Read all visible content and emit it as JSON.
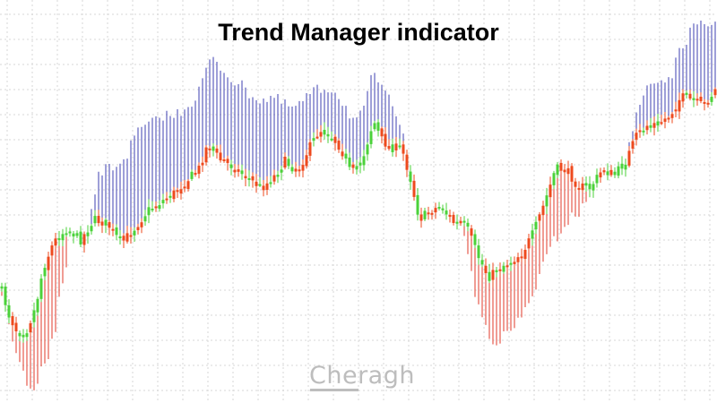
{
  "chart_data": {
    "type": "candlestick",
    "title": "Trend Manager indicator",
    "xlabel": "",
    "ylabel": "",
    "ylim": [
      0,
      450
    ],
    "grid": true,
    "legend": "none",
    "colors": {
      "bull_candle": "#4bd23a",
      "bear_candle": "#ee4a1e",
      "indicator_up": "#3d3fb0",
      "indicator_down": "#e23a2a",
      "grid": "#d7d7d7"
    },
    "series": [
      {
        "name": "price_close",
        "keypoints": [
          [
            0,
            318
          ],
          [
            10,
            352
          ],
          [
            20,
            372
          ],
          [
            30,
            368
          ],
          [
            40,
            342
          ],
          [
            48,
            300
          ],
          [
            60,
            270
          ],
          [
            75,
            255
          ],
          [
            90,
            268
          ],
          [
            105,
            245
          ],
          [
            120,
            250
          ],
          [
            135,
            272
          ],
          [
            150,
            255
          ],
          [
            165,
            235
          ],
          [
            180,
            225
          ],
          [
            195,
            215
          ],
          [
            210,
            200
          ],
          [
            222,
            188
          ],
          [
            232,
            160
          ],
          [
            245,
            178
          ],
          [
            258,
            185
          ],
          [
            268,
            192
          ],
          [
            278,
            200
          ],
          [
            292,
            210
          ],
          [
            305,
            198
          ],
          [
            318,
            180
          ],
          [
            332,
            192
          ],
          [
            345,
            165
          ],
          [
            357,
            145
          ],
          [
            368,
            150
          ],
          [
            380,
            165
          ],
          [
            392,
            195
          ],
          [
            405,
            175
          ],
          [
            417,
            135
          ],
          [
            425,
            155
          ],
          [
            435,
            165
          ],
          [
            448,
            165
          ],
          [
            458,
            200
          ],
          [
            468,
            245
          ],
          [
            480,
            235
          ],
          [
            492,
            230
          ],
          [
            505,
            248
          ],
          [
            520,
            252
          ],
          [
            533,
            285
          ],
          [
            545,
            310
          ],
          [
            558,
            298
          ],
          [
            570,
            292
          ],
          [
            583,
            282
          ],
          [
            595,
            260
          ],
          [
            608,
            225
          ],
          [
            620,
            188
          ],
          [
            632,
            190
          ],
          [
            645,
            208
          ],
          [
            658,
            210
          ],
          [
            672,
            190
          ],
          [
            686,
            195
          ],
          [
            698,
            180
          ],
          [
            710,
            152
          ],
          [
            722,
            140
          ],
          [
            735,
            138
          ],
          [
            748,
            128
          ],
          [
            760,
            108
          ],
          [
            772,
            112
          ],
          [
            785,
            118
          ],
          [
            800,
            98
          ]
        ]
      },
      {
        "name": "indicator_up",
        "keypoints": [
          [
            100,
            240
          ],
          [
            112,
            190
          ],
          [
            125,
            188
          ],
          [
            140,
            175
          ],
          [
            155,
            145
          ],
          [
            170,
            138
          ],
          [
            182,
            128
          ],
          [
            195,
            130
          ],
          [
            208,
            118
          ],
          [
            220,
            108
          ],
          [
            232,
            70
          ],
          [
            240,
            68
          ],
          [
            255,
            85
          ],
          [
            268,
            95
          ],
          [
            280,
            105
          ],
          [
            292,
            112
          ],
          [
            305,
            108
          ],
          [
            318,
            118
          ],
          [
            332,
            120
          ],
          [
            345,
            105
          ],
          [
            357,
            100
          ],
          [
            372,
            98
          ],
          [
            385,
            118
          ],
          [
            395,
            135
          ],
          [
            405,
            128
          ],
          [
            417,
            78
          ],
          [
            430,
            108
          ],
          [
            440,
            118
          ],
          [
            452,
            150
          ],
          [
            458,
            185
          ]
        ]
      },
      {
        "name": "indicator_up_right",
        "keypoints": [
          [
            702,
            158
          ],
          [
            712,
            125
          ],
          [
            722,
            95
          ],
          [
            735,
            90
          ],
          [
            748,
            88
          ],
          [
            758,
            60
          ],
          [
            770,
            35
          ],
          [
            785,
            28
          ],
          [
            800,
            25
          ]
        ]
      },
      {
        "name": "indicator_down_left",
        "keypoints": [
          [
            0,
            318
          ],
          [
            8,
            348
          ],
          [
            18,
            395
          ],
          [
            26,
            418
          ],
          [
            36,
            445
          ],
          [
            44,
            420
          ],
          [
            52,
            400
          ],
          [
            60,
            380
          ],
          [
            68,
            320
          ],
          [
            76,
            300
          ]
        ]
      },
      {
        "name": "indicator_down_mid",
        "keypoints": [
          [
            518,
            258
          ],
          [
            530,
            330
          ],
          [
            540,
            360
          ],
          [
            550,
            380
          ],
          [
            560,
            378
          ],
          [
            575,
            365
          ],
          [
            590,
            340
          ],
          [
            605,
            300
          ],
          [
            618,
            270
          ],
          [
            632,
            248
          ],
          [
            645,
            238
          ],
          [
            652,
            230
          ],
          [
            660,
            215
          ]
        ]
      }
    ]
  },
  "watermark": {
    "text": "Cheragh"
  }
}
